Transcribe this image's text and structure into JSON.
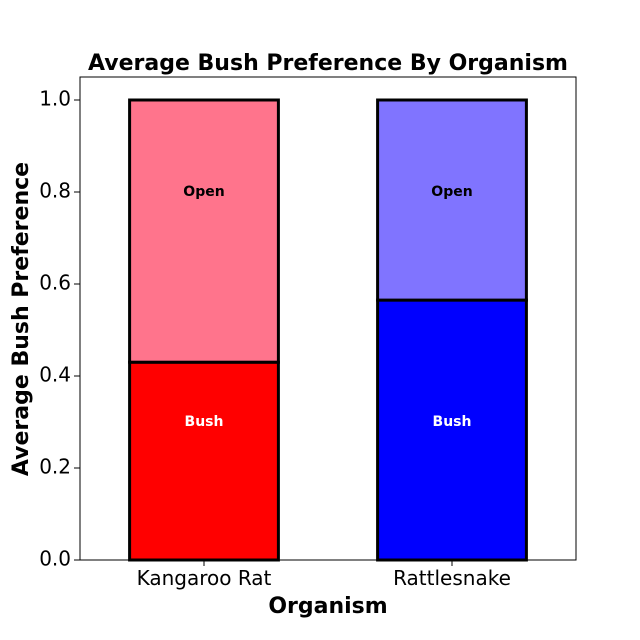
{
  "chart_data": {
    "type": "bar",
    "stacked": true,
    "title": "Average Bush Preference By Organism",
    "xlabel": "Organism",
    "ylabel": "Average Bush Preference",
    "categories": [
      "Kangaroo Rat",
      "Rattlesnake"
    ],
    "ylim": [
      0,
      1.05
    ],
    "yticks": [
      "0.0",
      "0.2",
      "0.4",
      "0.6",
      "0.8",
      "1.0"
    ],
    "grid": false,
    "series": [
      {
        "name": "Bush",
        "values": [
          0.43,
          0.565
        ],
        "colors": [
          "#ff0000",
          "#0000ff"
        ],
        "label_color": "#ffffff"
      },
      {
        "name": "Open",
        "values": [
          0.57,
          0.435
        ],
        "colors": [
          "#ff748c",
          "#8074ff"
        ],
        "label_color": "#000000"
      }
    ]
  }
}
